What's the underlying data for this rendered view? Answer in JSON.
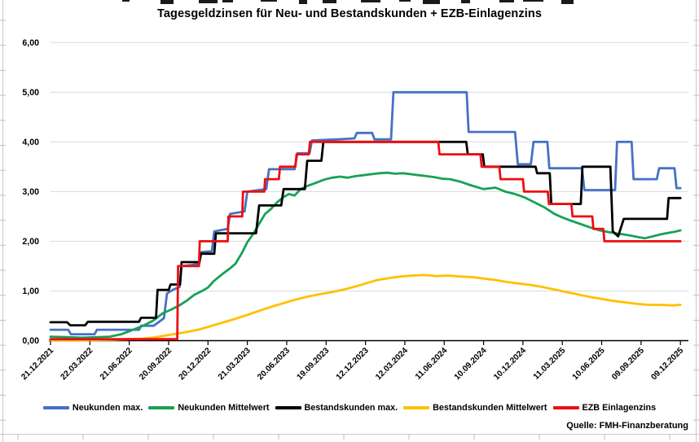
{
  "chart_data": {
    "type": "line",
    "title": "Tagesgeldzinsen für Neu- und Bestandskunden + EZB-Einlagenzins",
    "source": "Quelle: FMH-Finanzberatung",
    "xlabel": "",
    "ylabel": "",
    "xlim": [
      0,
      16
    ],
    "ylim": [
      0,
      6
    ],
    "grid": "horizontal",
    "legend_position": "bottom",
    "x_unit": "quarter index: 0 = 21.12.2021, 1 unit = 3 months, 16 = 09.12.2025",
    "y_unit": "Zins in % p.a.",
    "x_axis": {
      "tick_labels": [
        "21.12.2021",
        "22.03.2022",
        "21.06.2022",
        "20.09.2022",
        "20.12.2022",
        "21.03.2023",
        "20.06.2023",
        "19.09.2023",
        "12.12.2023",
        "12.03.2024",
        "11.06.2024",
        "10.09.2024",
        "10.12.2024",
        "11.03.2025",
        "10.06.2025",
        "09.09.2025",
        "09.12.2025"
      ]
    },
    "y_axis": {
      "tick_labels": [
        "0,00",
        "1,00",
        "2,00",
        "3,00",
        "4,00",
        "5,00",
        "6,00"
      ],
      "tick_values": [
        0,
        1,
        2,
        3,
        4,
        5,
        6
      ]
    },
    "series": [
      {
        "name": "Neukunden max.",
        "color": "#4472C4",
        "points": [
          [
            0,
            0.22
          ],
          [
            0.45,
            0.22
          ],
          [
            0.52,
            0.13
          ],
          [
            1.12,
            0.13
          ],
          [
            1.18,
            0.22
          ],
          [
            2.25,
            0.22
          ],
          [
            2.3,
            0.3
          ],
          [
            2.62,
            0.3
          ],
          [
            2.88,
            0.45
          ],
          [
            2.96,
            0.95
          ],
          [
            3.1,
            1.02
          ],
          [
            3.28,
            1.08
          ],
          [
            3.33,
            1.5
          ],
          [
            3.56,
            1.52
          ],
          [
            3.78,
            1.55
          ],
          [
            3.83,
            1.78
          ],
          [
            4.1,
            1.8
          ],
          [
            4.16,
            2.2
          ],
          [
            4.5,
            2.25
          ],
          [
            4.56,
            2.55
          ],
          [
            4.93,
            2.6
          ],
          [
            5.0,
            3.0
          ],
          [
            5.48,
            3.05
          ],
          [
            5.55,
            3.45
          ],
          [
            6.2,
            3.45
          ],
          [
            6.27,
            3.77
          ],
          [
            6.58,
            3.77
          ],
          [
            6.64,
            4.03
          ],
          [
            7.3,
            4.05
          ],
          [
            7.72,
            4.07
          ],
          [
            7.78,
            4.18
          ],
          [
            8.17,
            4.18
          ],
          [
            8.23,
            4.05
          ],
          [
            8.65,
            4.05
          ],
          [
            8.71,
            5.0
          ],
          [
            10.57,
            5.0
          ],
          [
            10.62,
            4.2
          ],
          [
            11.8,
            4.2
          ],
          [
            11.87,
            3.55
          ],
          [
            12.2,
            3.55
          ],
          [
            12.27,
            4.0
          ],
          [
            12.62,
            4.0
          ],
          [
            12.67,
            3.47
          ],
          [
            13.5,
            3.47
          ],
          [
            13.56,
            3.03
          ],
          [
            14.34,
            3.03
          ],
          [
            14.39,
            4.0
          ],
          [
            14.76,
            4.0
          ],
          [
            14.81,
            3.25
          ],
          [
            15.4,
            3.25
          ],
          [
            15.46,
            3.47
          ],
          [
            15.85,
            3.47
          ],
          [
            15.9,
            3.07
          ],
          [
            16,
            3.07
          ]
        ]
      },
      {
        "name": "Neukunden Mittelwert",
        "color": "#17A155",
        "points": [
          [
            0,
            0.08
          ],
          [
            0.4,
            0.07
          ],
          [
            0.8,
            0.06
          ],
          [
            1.2,
            0.07
          ],
          [
            1.5,
            0.08
          ],
          [
            1.8,
            0.13
          ],
          [
            2.1,
            0.22
          ],
          [
            2.35,
            0.3
          ],
          [
            2.6,
            0.4
          ],
          [
            2.85,
            0.55
          ],
          [
            3.05,
            0.62
          ],
          [
            3.25,
            0.7
          ],
          [
            3.45,
            0.8
          ],
          [
            3.65,
            0.92
          ],
          [
            3.85,
            1.0
          ],
          [
            4.0,
            1.07
          ],
          [
            4.15,
            1.2
          ],
          [
            4.35,
            1.33
          ],
          [
            4.55,
            1.45
          ],
          [
            4.7,
            1.55
          ],
          [
            4.85,
            1.75
          ],
          [
            5.0,
            1.98
          ],
          [
            5.15,
            2.15
          ],
          [
            5.3,
            2.35
          ],
          [
            5.45,
            2.55
          ],
          [
            5.6,
            2.65
          ],
          [
            5.75,
            2.78
          ],
          [
            5.9,
            2.88
          ],
          [
            6.05,
            2.95
          ],
          [
            6.2,
            2.92
          ],
          [
            6.35,
            3.05
          ],
          [
            6.55,
            3.12
          ],
          [
            6.75,
            3.18
          ],
          [
            6.95,
            3.24
          ],
          [
            7.15,
            3.28
          ],
          [
            7.35,
            3.3
          ],
          [
            7.55,
            3.28
          ],
          [
            7.75,
            3.31
          ],
          [
            7.95,
            3.33
          ],
          [
            8.15,
            3.35
          ],
          [
            8.35,
            3.37
          ],
          [
            8.55,
            3.38
          ],
          [
            8.75,
            3.36
          ],
          [
            8.95,
            3.37
          ],
          [
            9.15,
            3.35
          ],
          [
            9.35,
            3.33
          ],
          [
            9.55,
            3.31
          ],
          [
            9.75,
            3.29
          ],
          [
            9.95,
            3.26
          ],
          [
            10.15,
            3.25
          ],
          [
            10.4,
            3.2
          ],
          [
            10.7,
            3.12
          ],
          [
            11.0,
            3.05
          ],
          [
            11.3,
            3.08
          ],
          [
            11.55,
            3.0
          ],
          [
            11.8,
            2.95
          ],
          [
            12.05,
            2.88
          ],
          [
            12.3,
            2.78
          ],
          [
            12.55,
            2.68
          ],
          [
            12.8,
            2.55
          ],
          [
            13.0,
            2.48
          ],
          [
            13.2,
            2.42
          ],
          [
            13.45,
            2.35
          ],
          [
            13.7,
            2.28
          ],
          [
            13.95,
            2.22
          ],
          [
            14.2,
            2.18
          ],
          [
            14.45,
            2.15
          ],
          [
            14.7,
            2.12
          ],
          [
            14.95,
            2.08
          ],
          [
            15.1,
            2.06
          ],
          [
            15.3,
            2.1
          ],
          [
            15.5,
            2.14
          ],
          [
            15.7,
            2.17
          ],
          [
            15.85,
            2.19
          ],
          [
            16,
            2.22
          ]
        ]
      },
      {
        "name": "Bestandskunden max.",
        "color": "#000000",
        "points": [
          [
            0,
            0.37
          ],
          [
            0.42,
            0.37
          ],
          [
            0.5,
            0.31
          ],
          [
            0.88,
            0.31
          ],
          [
            0.95,
            0.38
          ],
          [
            2.25,
            0.38
          ],
          [
            2.3,
            0.46
          ],
          [
            2.68,
            0.46
          ],
          [
            2.72,
            1.02
          ],
          [
            3.0,
            1.02
          ],
          [
            3.05,
            1.13
          ],
          [
            3.29,
            1.13
          ],
          [
            3.33,
            1.58
          ],
          [
            3.78,
            1.58
          ],
          [
            3.82,
            1.75
          ],
          [
            4.16,
            1.75
          ],
          [
            4.2,
            2.16
          ],
          [
            5.22,
            2.16
          ],
          [
            5.3,
            2.72
          ],
          [
            5.86,
            2.72
          ],
          [
            5.92,
            3.05
          ],
          [
            6.46,
            3.05
          ],
          [
            6.52,
            3.62
          ],
          [
            6.88,
            3.62
          ],
          [
            6.93,
            4.0
          ],
          [
            10.56,
            4.0
          ],
          [
            10.6,
            3.75
          ],
          [
            10.98,
            3.75
          ],
          [
            11.02,
            3.5
          ],
          [
            12.32,
            3.5
          ],
          [
            12.36,
            3.37
          ],
          [
            12.68,
            3.37
          ],
          [
            12.72,
            2.75
          ],
          [
            13.47,
            2.75
          ],
          [
            13.51,
            3.5
          ],
          [
            14.22,
            3.5
          ],
          [
            14.28,
            2.2
          ],
          [
            14.42,
            2.1
          ],
          [
            14.56,
            2.45
          ],
          [
            15.66,
            2.45
          ],
          [
            15.7,
            2.87
          ],
          [
            16,
            2.87
          ]
        ]
      },
      {
        "name": "Bestandskunden Mittelwert",
        "color": "#FFC000",
        "points": [
          [
            0,
            0.01
          ],
          [
            1.0,
            0.01
          ],
          [
            1.6,
            0.02
          ],
          [
            2.0,
            0.03
          ],
          [
            2.3,
            0.04
          ],
          [
            2.6,
            0.06
          ],
          [
            2.9,
            0.1
          ],
          [
            3.2,
            0.14
          ],
          [
            3.5,
            0.18
          ],
          [
            3.8,
            0.23
          ],
          [
            4.1,
            0.3
          ],
          [
            4.4,
            0.37
          ],
          [
            4.7,
            0.44
          ],
          [
            5.0,
            0.52
          ],
          [
            5.3,
            0.6
          ],
          [
            5.6,
            0.68
          ],
          [
            5.9,
            0.75
          ],
          [
            6.2,
            0.82
          ],
          [
            6.5,
            0.88
          ],
          [
            6.8,
            0.93
          ],
          [
            7.1,
            0.97
          ],
          [
            7.4,
            1.02
          ],
          [
            7.7,
            1.08
          ],
          [
            8.0,
            1.15
          ],
          [
            8.3,
            1.22
          ],
          [
            8.6,
            1.26
          ],
          [
            8.9,
            1.29
          ],
          [
            9.2,
            1.31
          ],
          [
            9.5,
            1.32
          ],
          [
            9.8,
            1.3
          ],
          [
            10.1,
            1.31
          ],
          [
            10.4,
            1.29
          ],
          [
            10.7,
            1.28
          ],
          [
            11.0,
            1.25
          ],
          [
            11.3,
            1.22
          ],
          [
            11.6,
            1.18
          ],
          [
            11.9,
            1.15
          ],
          [
            12.2,
            1.12
          ],
          [
            12.5,
            1.08
          ],
          [
            12.8,
            1.03
          ],
          [
            13.1,
            0.98
          ],
          [
            13.4,
            0.93
          ],
          [
            13.7,
            0.88
          ],
          [
            14.0,
            0.84
          ],
          [
            14.3,
            0.8
          ],
          [
            14.6,
            0.77
          ],
          [
            14.9,
            0.74
          ],
          [
            15.2,
            0.72
          ],
          [
            15.5,
            0.72
          ],
          [
            15.8,
            0.71
          ],
          [
            16,
            0.72
          ]
        ]
      },
      {
        "name": "EZB Einlagenzins",
        "color": "#ED0E11",
        "points": [
          [
            0,
            0.03
          ],
          [
            3.22,
            0.03
          ],
          [
            3.24,
            1.5
          ],
          [
            3.77,
            1.5
          ],
          [
            3.79,
            2.0
          ],
          [
            4.5,
            2.0
          ],
          [
            4.52,
            2.5
          ],
          [
            4.87,
            2.5
          ],
          [
            4.89,
            3.0
          ],
          [
            5.43,
            3.0
          ],
          [
            5.45,
            3.25
          ],
          [
            5.8,
            3.25
          ],
          [
            5.83,
            3.5
          ],
          [
            6.22,
            3.5
          ],
          [
            6.25,
            3.75
          ],
          [
            6.56,
            3.75
          ],
          [
            6.59,
            4.0
          ],
          [
            9.85,
            4.0
          ],
          [
            9.88,
            3.75
          ],
          [
            10.92,
            3.75
          ],
          [
            10.95,
            3.5
          ],
          [
            11.4,
            3.5
          ],
          [
            11.43,
            3.25
          ],
          [
            12.0,
            3.25
          ],
          [
            12.03,
            3.0
          ],
          [
            12.63,
            3.0
          ],
          [
            12.66,
            2.75
          ],
          [
            13.23,
            2.75
          ],
          [
            13.26,
            2.5
          ],
          [
            13.76,
            2.5
          ],
          [
            13.79,
            2.25
          ],
          [
            14.04,
            2.25
          ],
          [
            14.07,
            2.0
          ],
          [
            16,
            2.0
          ]
        ]
      }
    ]
  }
}
